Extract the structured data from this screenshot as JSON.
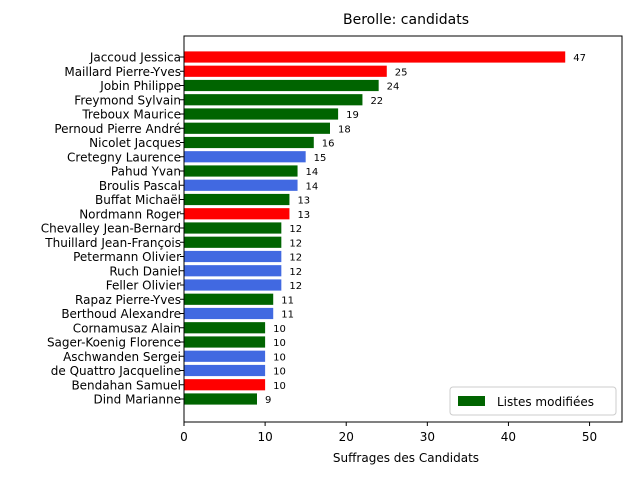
{
  "chart_data": {
    "type": "bar",
    "orientation": "horizontal",
    "title": "Berolle: candidats",
    "xlabel": "Suffrages des Candidats",
    "ylabel": "",
    "xlim": [
      0,
      54
    ],
    "xticks": [
      0,
      10,
      20,
      30,
      40,
      50
    ],
    "grid": false,
    "legend": {
      "position": "lower-right",
      "entries": [
        {
          "label": "Listes modifiées",
          "color": "#006400"
        }
      ]
    },
    "colors": {
      "red": "#ff0000",
      "green": "#006400",
      "blue": "#4169e1"
    },
    "bars": [
      {
        "name": "Jaccoud Jessica",
        "value": 47,
        "color": "#ff0000"
      },
      {
        "name": "Maillard Pierre-Yves",
        "value": 25,
        "color": "#ff0000"
      },
      {
        "name": "Jobin Philippe",
        "value": 24,
        "color": "#006400"
      },
      {
        "name": "Freymond Sylvain",
        "value": 22,
        "color": "#006400"
      },
      {
        "name": "Treboux Maurice",
        "value": 19,
        "color": "#006400"
      },
      {
        "name": "Pernoud Pierre André",
        "value": 18,
        "color": "#006400"
      },
      {
        "name": "Nicolet Jacques",
        "value": 16,
        "color": "#006400"
      },
      {
        "name": "Cretegny Laurence",
        "value": 15,
        "color": "#4169e1"
      },
      {
        "name": "Pahud Yvan",
        "value": 14,
        "color": "#006400"
      },
      {
        "name": "Broulis Pascal",
        "value": 14,
        "color": "#4169e1"
      },
      {
        "name": "Buffat Michaël",
        "value": 13,
        "color": "#006400"
      },
      {
        "name": "Nordmann Roger",
        "value": 13,
        "color": "#ff0000"
      },
      {
        "name": "Chevalley Jean-Bernard",
        "value": 12,
        "color": "#006400"
      },
      {
        "name": "Thuillard Jean-François",
        "value": 12,
        "color": "#006400"
      },
      {
        "name": "Petermann Olivier",
        "value": 12,
        "color": "#4169e1"
      },
      {
        "name": "Ruch Daniel",
        "value": 12,
        "color": "#4169e1"
      },
      {
        "name": "Feller Olivier",
        "value": 12,
        "color": "#4169e1"
      },
      {
        "name": "Rapaz Pierre-Yves",
        "value": 11,
        "color": "#006400"
      },
      {
        "name": "Berthoud Alexandre",
        "value": 11,
        "color": "#4169e1"
      },
      {
        "name": "Cornamusaz Alain",
        "value": 10,
        "color": "#006400"
      },
      {
        "name": "Sager-Koenig Florence",
        "value": 10,
        "color": "#006400"
      },
      {
        "name": "Aschwanden Sergei",
        "value": 10,
        "color": "#4169e1"
      },
      {
        "name": "de Quattro Jacqueline",
        "value": 10,
        "color": "#4169e1"
      },
      {
        "name": "Bendahan Samuel",
        "value": 10,
        "color": "#ff0000"
      },
      {
        "name": "Dind Marianne",
        "value": 9,
        "color": "#006400"
      }
    ]
  }
}
